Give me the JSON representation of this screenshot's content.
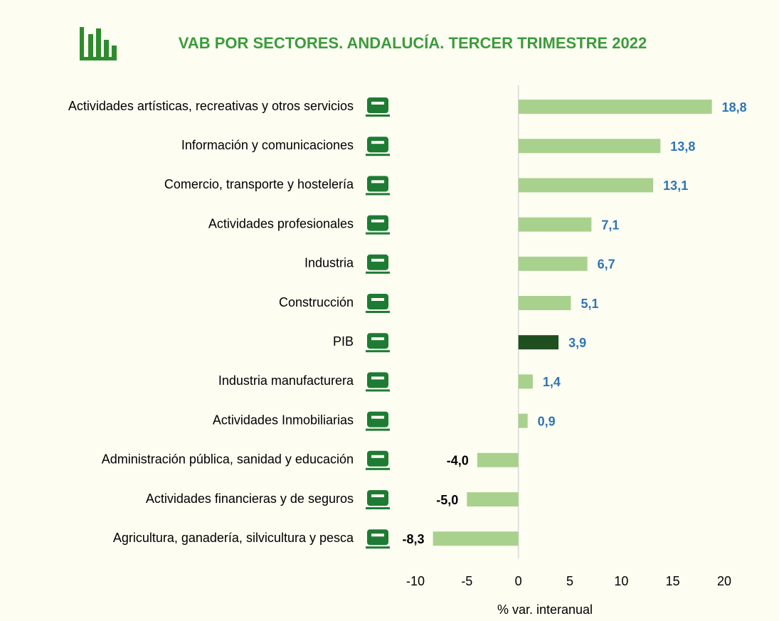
{
  "chart_data": {
    "type": "barh",
    "title": "VAB POR SECTORES. ANDALUCÍA. TERCER TRIMESTRE 2022",
    "x_label": "% var. interanual",
    "categories": [
      "Actividades artísticas, recreativas y otros servicios",
      "Información y comunicaciones",
      "Comercio, transporte y hostelería",
      "Actividades profesionales",
      "Industria",
      "Construcción",
      "PIB",
      "Industria manufacturera",
      "Actividades Inmobiliarias",
      "Administración pública, sanidad y educación",
      "Actividades financieras y de seguros",
      "Agricultura, ganadería, silvicultura y pesca"
    ],
    "values": [
      18.8,
      13.8,
      13.1,
      7.1,
      6.7,
      5.1,
      3.9,
      1.4,
      0.9,
      -4.0,
      -5.0,
      -8.3
    ],
    "value_labels": [
      "18,8",
      "13,8",
      "13,1",
      "7,1",
      "6,7",
      "5,1",
      "3,9",
      "1,4",
      "0,9",
      "-4,0",
      "-5,0",
      "-8,3"
    ],
    "colors": [
      "#a9d18e",
      "#a9d18e",
      "#a9d18e",
      "#a9d18e",
      "#a9d18e",
      "#a9d18e",
      "#1f4e1f",
      "#a9d18e",
      "#a9d18e",
      "#a9d18e",
      "#a9d18e",
      "#a9d18e"
    ],
    "label_color_positive": "#2e75b6",
    "label_color_negative": "#000000",
    "xlim": [
      -10,
      20
    ],
    "xticks": [
      -10,
      -5,
      0,
      5,
      10,
      15,
      20
    ]
  }
}
